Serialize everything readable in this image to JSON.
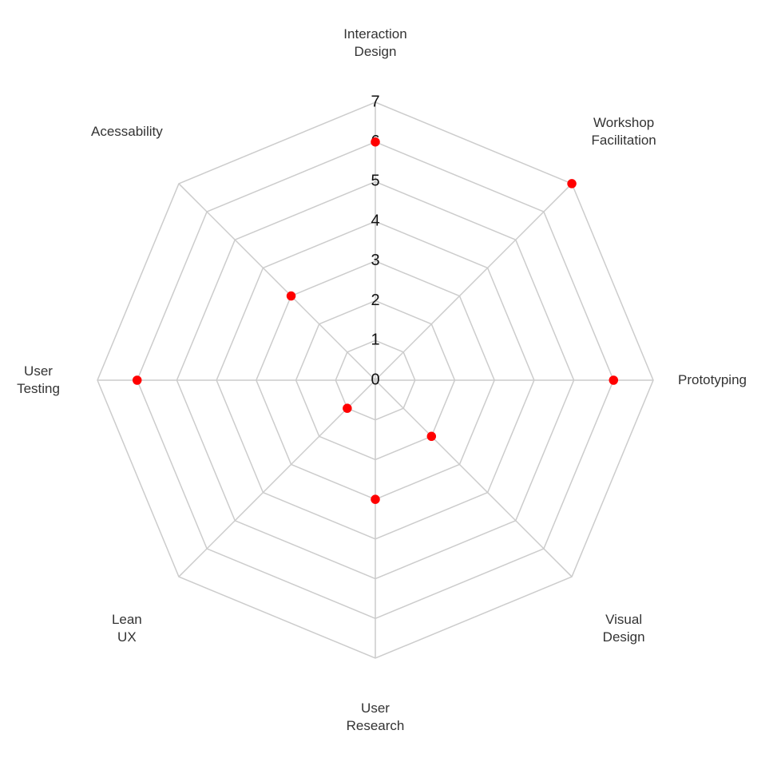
{
  "chart_data": {
    "type": "radar",
    "categories": [
      "Interaction Design",
      "Workshop Facilitation",
      "Prototyping",
      "Visual Design",
      "User Research",
      "Lean UX",
      "User Testing",
      "Acessability"
    ],
    "values": [
      6,
      7,
      6,
      2,
      3,
      1,
      6,
      3
    ],
    "color": "#ff0000",
    "ylim": [
      0,
      7
    ],
    "yticks": [
      0,
      1,
      2,
      3,
      4,
      5,
      6,
      7
    ],
    "grid": true
  }
}
